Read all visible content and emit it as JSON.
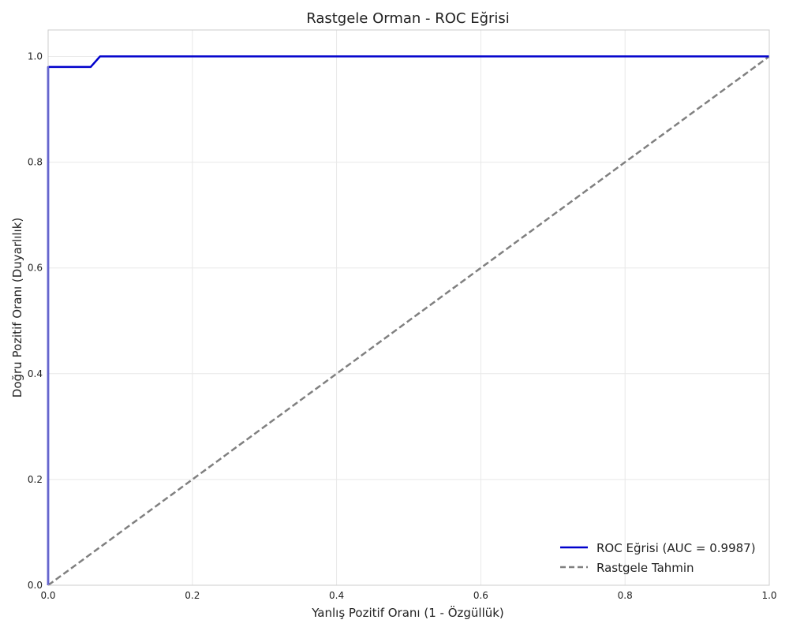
{
  "chart_data": {
    "type": "line",
    "title": "Rastgele Orman - ROC Eğrisi",
    "xlabel": "Yanlış Pozitif Oranı (1 - Özgüllük)",
    "ylabel": "Doğru Pozitif Oranı (Duyarlılık)",
    "xlim": [
      0,
      1.0
    ],
    "ylim": [
      0,
      1.05
    ],
    "xticks": [
      0.0,
      0.2,
      0.4,
      0.6,
      0.8,
      1.0
    ],
    "xtick_labels": [
      "0.0",
      "0.2",
      "0.4",
      "0.6",
      "0.8",
      "1.0"
    ],
    "yticks": [
      0.0,
      0.2,
      0.4,
      0.6,
      0.8,
      1.0
    ],
    "ytick_labels": [
      "0.0",
      "0.2",
      "0.4",
      "0.6",
      "0.8",
      "1.0"
    ],
    "grid": true,
    "legend_position": "bottom-right",
    "series": [
      {
        "name": "ROC Eğrisi (AUC = 0.9987)",
        "color": "#0000cc",
        "style": "solid",
        "x": [
          0.0,
          0.0,
          0.059,
          0.072,
          1.0
        ],
        "y": [
          0.0,
          0.98,
          0.98,
          1.0,
          1.0
        ]
      },
      {
        "name": "Rastgele Tahmin",
        "color": "#808080",
        "style": "dashed",
        "x": [
          0.0,
          1.0
        ],
        "y": [
          0.0,
          1.0
        ]
      }
    ]
  }
}
